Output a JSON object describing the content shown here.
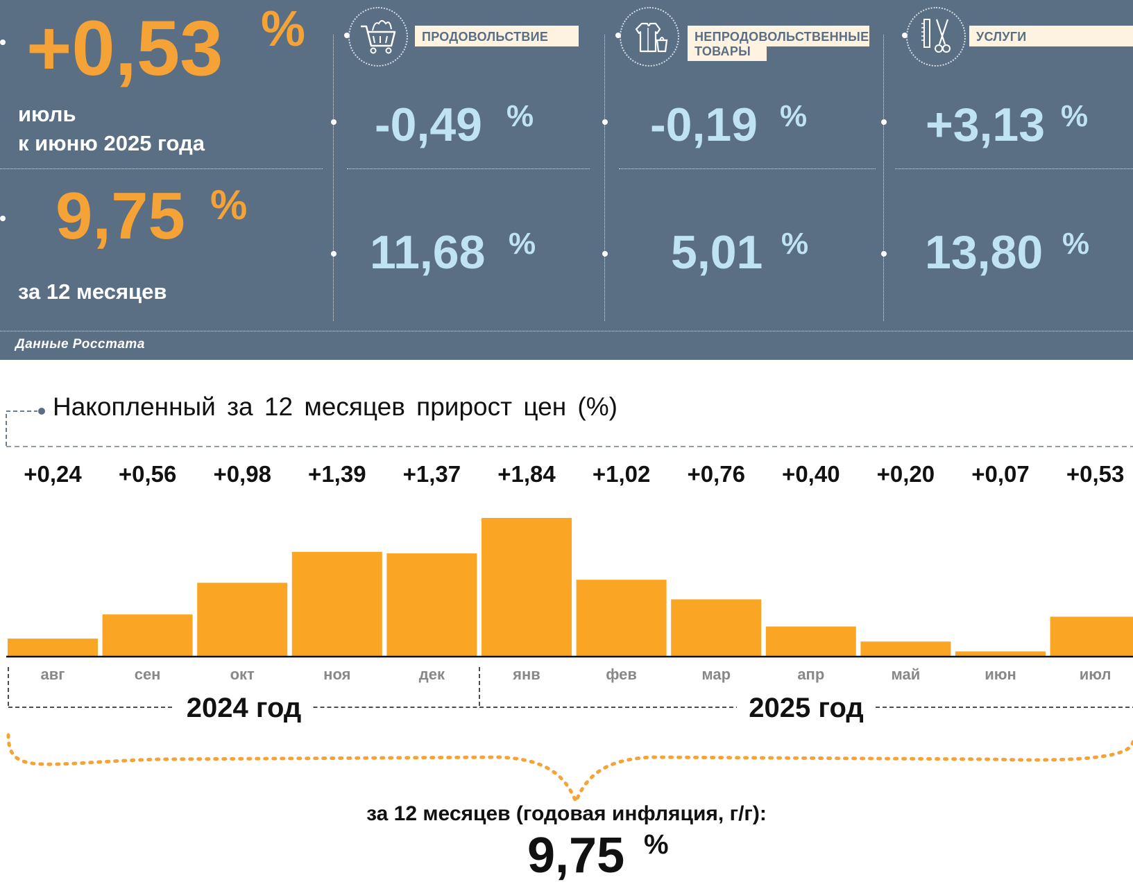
{
  "headline": {
    "monthly_change": "+0,53",
    "monthly_unit": "%",
    "monthly_label_line1": "июль",
    "monthly_label_line2": "к июню 2025 года",
    "annual_change": "9,75",
    "annual_unit": "%",
    "annual_label": "за 12 месяцев"
  },
  "categories": [
    {
      "label": "ПРОДОВОЛЬСТВИЕ",
      "icon": "shopping-cart-icon",
      "monthly": "-0,49",
      "annual": "11,68",
      "unit": "%"
    },
    {
      "label_line1": "НЕПРОДОВОЛЬСТВЕННЫЕ",
      "label_line2": "ТОВАРЫ",
      "icon": "clothing-bag-icon",
      "monthly": "-0,19",
      "annual": "5,01",
      "unit": "%"
    },
    {
      "label": "УСЛУГИ",
      "icon": "comb-scissors-icon",
      "monthly": "+3,13",
      "annual": "13,80",
      "unit": "%"
    }
  ],
  "source_note": "Данные Росстата",
  "colors": {
    "panel": "#5a6e84",
    "accent": "#f5a236",
    "bar": "#fba524",
    "value_blue": "#bfe3f3",
    "label_bg": "#fdf3e0"
  },
  "chart_data": {
    "type": "bar",
    "title": "Накопленный за 12 месяцев прирост цен (%)",
    "categories": [
      "авг",
      "сен",
      "окт",
      "ноя",
      "дек",
      "янв",
      "фев",
      "мар",
      "апр",
      "май",
      "июн",
      "июл"
    ],
    "values": [
      0.24,
      0.56,
      0.98,
      1.39,
      1.37,
      1.84,
      1.02,
      0.76,
      0.4,
      0.2,
      0.07,
      0.53
    ],
    "value_labels": [
      "+0,24",
      "+0,56",
      "+0,98",
      "+1,39",
      "+1,37",
      "+1,84",
      "+1,02",
      "+0,76",
      "+0,40",
      "+0,20",
      "+0,07",
      "+0,53"
    ],
    "year_groups": [
      {
        "label": "2024 год",
        "months": 5
      },
      {
        "label": "2025 год",
        "months": 7
      }
    ],
    "ylim": [
      0,
      1.84
    ],
    "grid": false,
    "annual_caption": "за 12 месяцев (годовая инфляция, г/г):",
    "annual_value": "9,75",
    "annual_unit": "%"
  }
}
